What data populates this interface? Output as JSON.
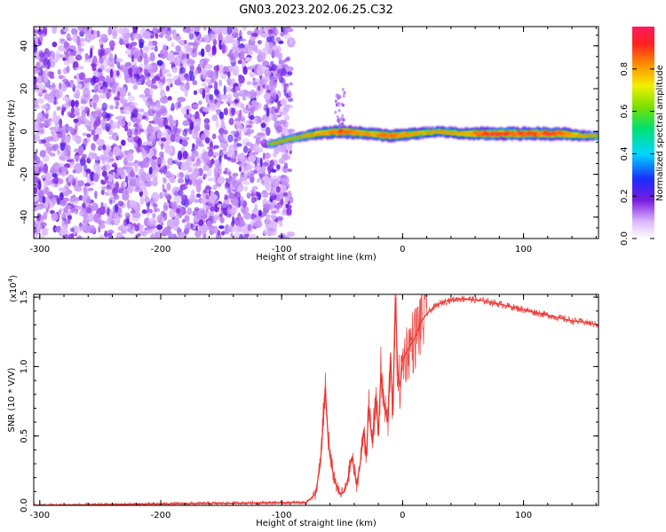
{
  "title": "GN03.2023.202.06.25.C32",
  "chart_data": [
    {
      "type": "heatmap",
      "title": "GN03.2023.202.06.25.C32",
      "xlabel": "Height of straight line (km)",
      "ylabel": "Frequency (Hz)",
      "xlim": [
        -305,
        162
      ],
      "ylim": [
        -50,
        49
      ],
      "x_ticks": [
        -300,
        -200,
        -100,
        0,
        100
      ],
      "x_tick_labels": [
        "-300",
        "-200",
        "-100",
        "0",
        "100"
      ],
      "y_ticks": [
        -40,
        -20,
        0,
        20,
        40
      ],
      "y_tick_labels": [
        "-40",
        "-20",
        "0",
        "20",
        "40"
      ],
      "noise_region_x": [
        -305,
        -92
      ],
      "signal_ridge": {
        "x": [
          -110,
          -90,
          -70,
          -50,
          -30,
          -10,
          10,
          30,
          50,
          70,
          90,
          110,
          130,
          150,
          162
        ],
        "freq": [
          -6,
          -3,
          -1,
          0,
          -1,
          -2,
          -1,
          0,
          -1,
          -1,
          -1,
          -1,
          -1,
          -2,
          -2
        ],
        "amplitude": [
          0.25,
          0.45,
          0.7,
          0.85,
          0.75,
          0.8,
          0.7,
          0.6,
          0.7,
          0.85,
          0.85,
          0.85,
          0.85,
          0.6,
          0.4
        ]
      },
      "colorbar": {
        "label": "Normalized spectral amplitude",
        "range": [
          0,
          1
        ],
        "ticks": [
          0.0,
          0.2,
          0.4,
          0.6,
          0.8
        ],
        "tick_labels": [
          "0.0",
          "0.2",
          "0.4",
          "0.6",
          "0.8"
        ]
      }
    },
    {
      "type": "line",
      "xlabel": "Height of straight line (km)",
      "ylabel": "SNR (10 * V/V)",
      "scale_note": "(x10",
      "scale_exponent": "4",
      "scale_suffix": ")",
      "xlim": [
        -305,
        162
      ],
      "ylim": [
        0,
        1.52
      ],
      "x_ticks": [
        -300,
        -200,
        -100,
        0,
        100
      ],
      "x_tick_labels": [
        "-300",
        "-200",
        "-100",
        "0",
        "100"
      ],
      "y_ticks": [
        0.0,
        0.5,
        1.0,
        1.5
      ],
      "y_tick_labels": [
        "0.0",
        "0.5",
        "1.0",
        "1.5"
      ],
      "color": "#e8332e",
      "series": [
        {
          "name": "SNR",
          "x": [
            -305,
            -200,
            -100,
            -80,
            -72,
            -68,
            -66,
            -64,
            -62,
            -60,
            -58,
            -55,
            -52,
            -48,
            -45,
            -42,
            -40,
            -38,
            -35,
            -32,
            -30,
            -28,
            -25,
            -22,
            -20,
            -18,
            -15,
            -12,
            -10,
            -8,
            -6,
            -4,
            -2,
            0,
            3,
            6,
            10,
            15,
            20,
            25,
            30,
            35,
            40,
            50,
            60,
            70,
            80,
            90,
            100,
            110,
            120,
            130,
            140,
            150,
            162
          ],
          "y": [
            0.0,
            0.01,
            0.02,
            0.02,
            0.08,
            0.3,
            0.55,
            0.85,
            0.55,
            0.35,
            0.25,
            0.15,
            0.08,
            0.1,
            0.2,
            0.35,
            0.25,
            0.15,
            0.3,
            0.55,
            0.35,
            0.7,
            0.45,
            0.8,
            0.5,
            0.95,
            0.7,
            0.6,
            1.1,
            0.65,
            1.5,
            0.95,
            0.85,
            1.05,
            1.1,
            1.15,
            1.2,
            1.32,
            1.38,
            1.42,
            1.45,
            1.47,
            1.48,
            1.49,
            1.48,
            1.47,
            1.45,
            1.43,
            1.41,
            1.39,
            1.37,
            1.35,
            1.33,
            1.32,
            1.3
          ]
        }
      ]
    }
  ]
}
